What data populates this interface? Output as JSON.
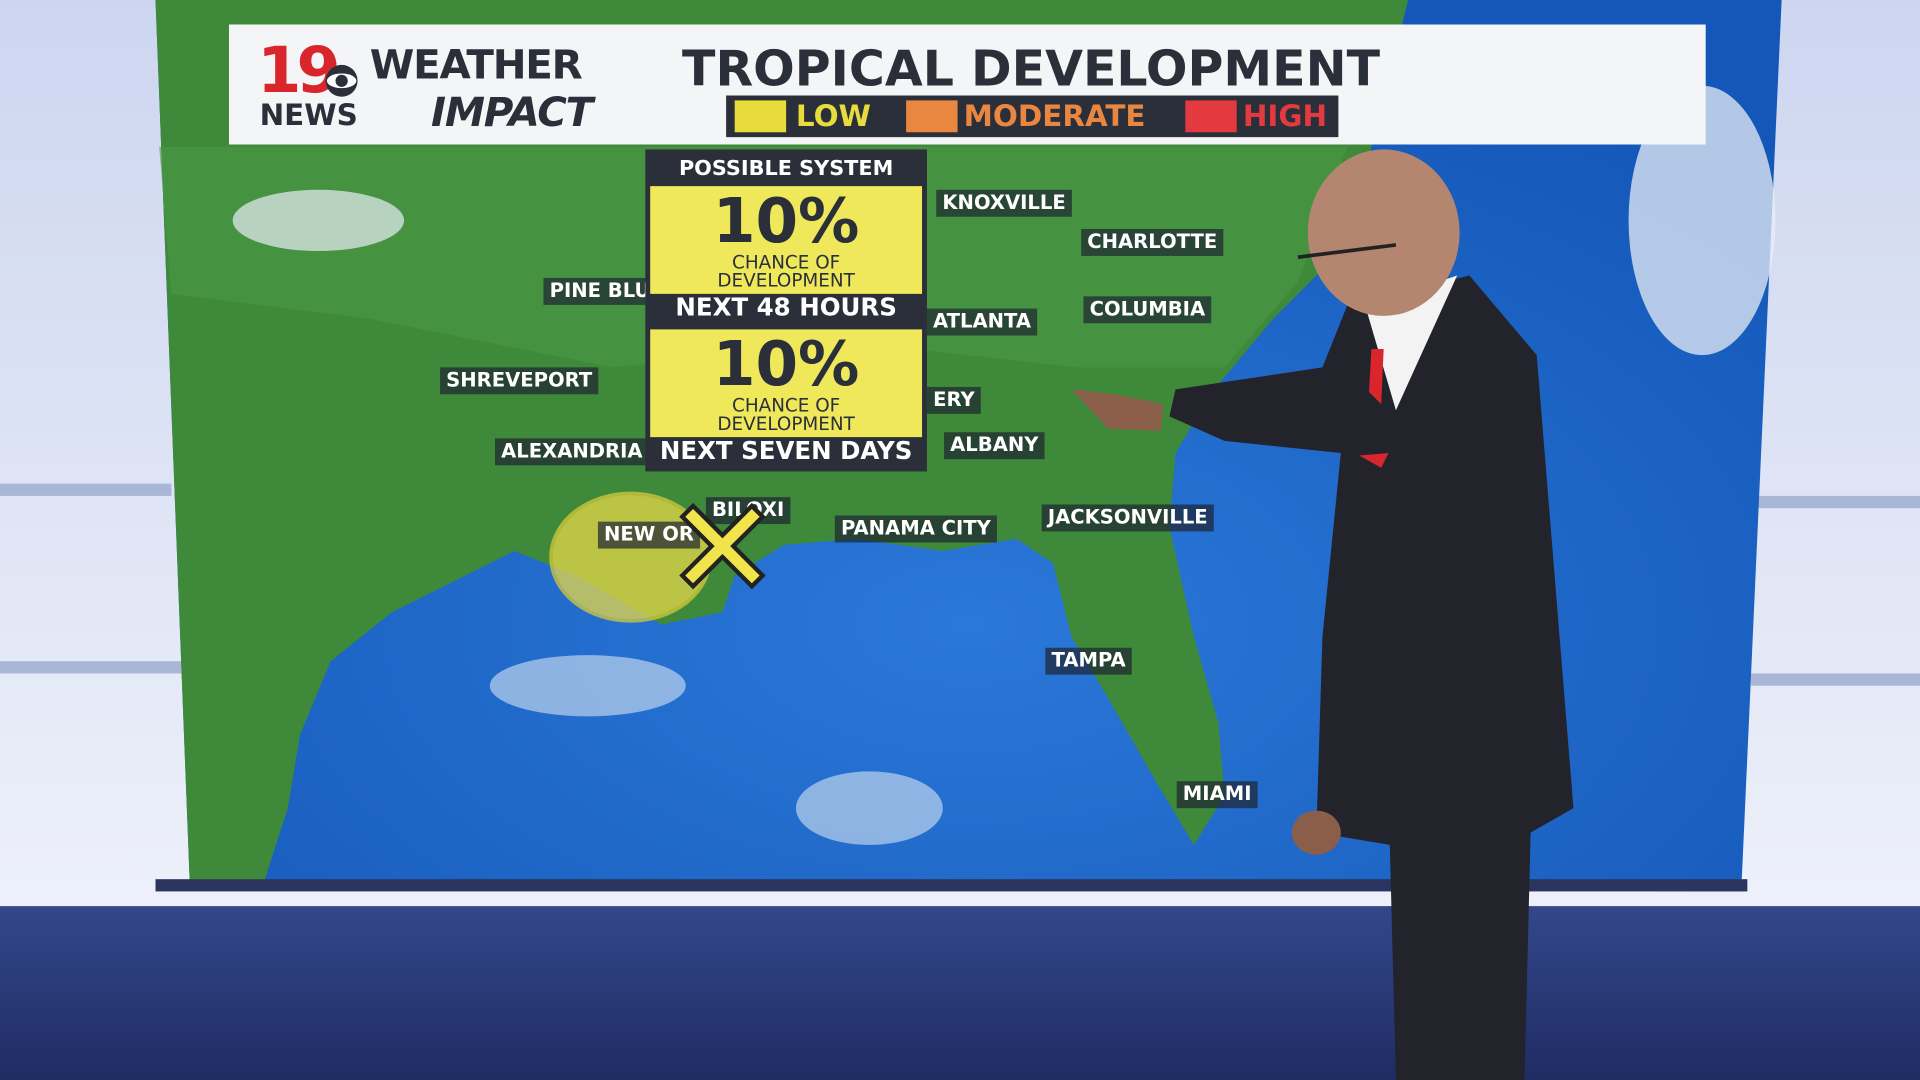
{
  "header": {
    "logo_number": "19",
    "logo_station": "NEWS",
    "brand_top": "WEATHER",
    "brand_bottom": "IMPACT",
    "title": "TROPICAL DEVELOPMENT",
    "legend": [
      "LOW",
      "MODERATE",
      "HIGH"
    ]
  },
  "system": {
    "heading": "POSSIBLE SYSTEM",
    "outlooks": [
      {
        "chance": "10%",
        "caption": [
          "CHANCE OF",
          "DEVELOPMENT"
        ],
        "period": "NEXT 48 HOURS"
      },
      {
        "chance": "10%",
        "caption": [
          "CHANCE OF",
          "DEVELOPMENT"
        ],
        "period": "NEXT SEVEN DAYS"
      }
    ]
  },
  "cities": [
    "KNOXVILLE",
    "CHARLOTTE",
    "PINE BLU",
    "COLUMBIA",
    "ATLANTA",
    "SHREVEPORT",
    "ERY",
    "ALEXANDRIA",
    "ALBANY",
    "NEW OR",
    "BILOXI",
    "PANAMA CITY",
    "JACKSONVILLE",
    "TAMPA",
    "MIAMI"
  ]
}
